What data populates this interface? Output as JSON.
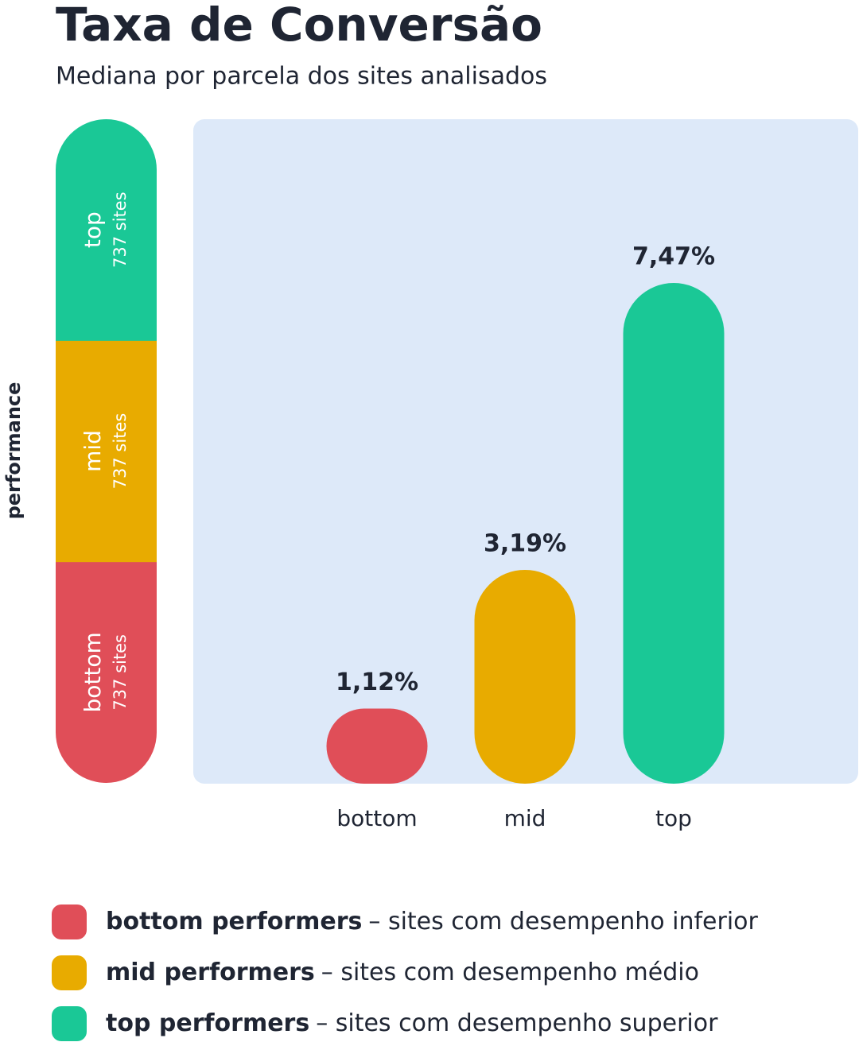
{
  "chart_data": {
    "type": "bar",
    "title": "Taxa de Conversão",
    "subtitle": "Mediana por parcela dos sites analisados",
    "categories": [
      "bottom",
      "mid",
      "top"
    ],
    "values": [
      1.12,
      3.19,
      7.47
    ],
    "value_labels": [
      "1,12%",
      "3,19%",
      "7,47%"
    ],
    "colors": [
      "#e04e58",
      "#e8ab00",
      "#1ac896"
    ],
    "performance_bar": {
      "label": "performance",
      "segments": [
        {
          "name": "bottom",
          "count": "737 sites"
        },
        {
          "name": "mid",
          "count": "737 sites"
        },
        {
          "name": "top",
          "count": "737 sites"
        }
      ]
    },
    "legend": [
      {
        "name": "bottom performers",
        "description": "– sites com desempenho inferior"
      },
      {
        "name": "mid performers",
        "description": "– sites com desempenho médio"
      },
      {
        "name": "top performers",
        "description": "– sites com desempenho superior"
      }
    ]
  }
}
